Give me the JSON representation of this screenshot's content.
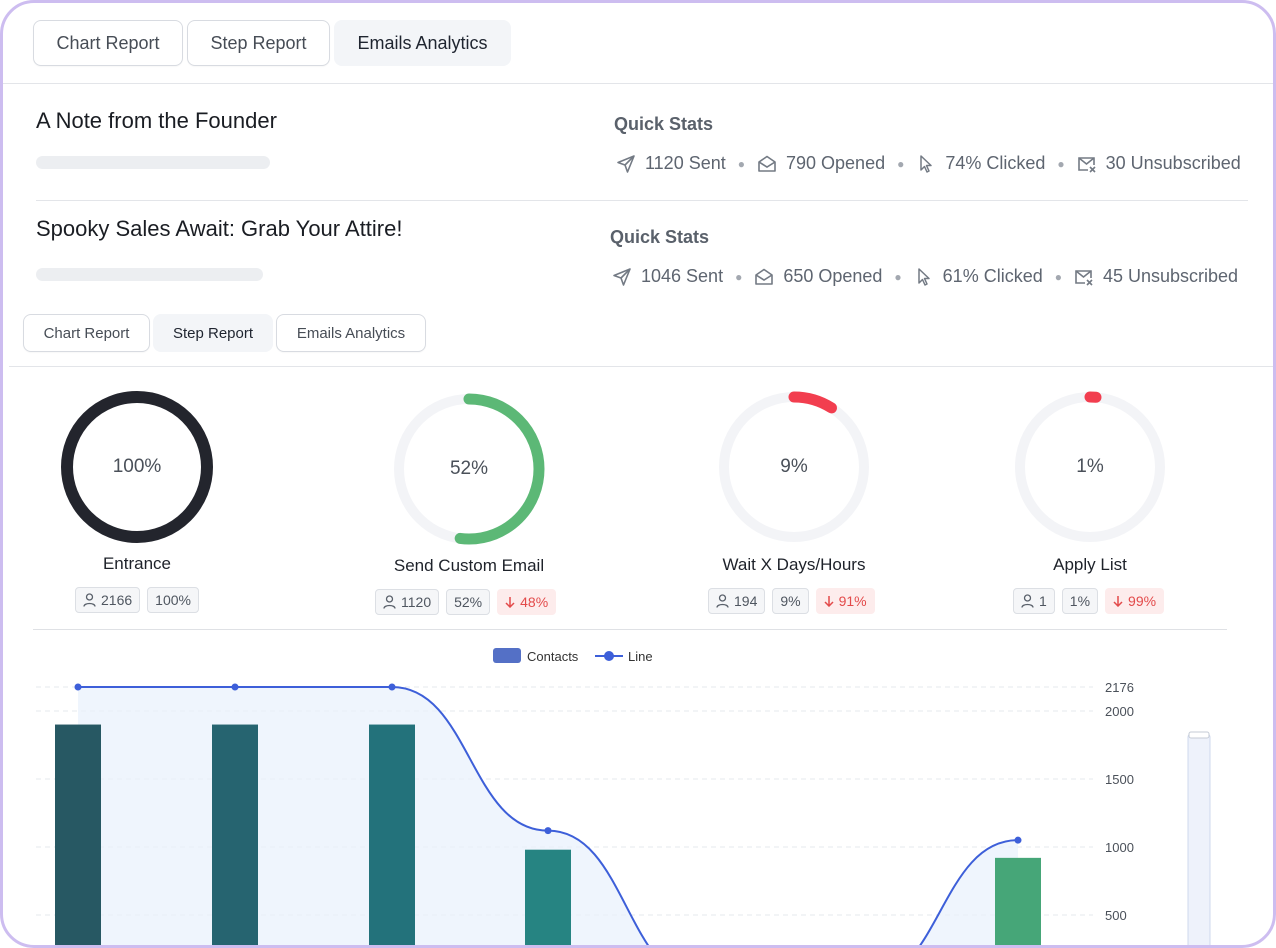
{
  "top_tabs": [
    {
      "label": "Chart Report",
      "active": false
    },
    {
      "label": "Step Report",
      "active": false
    },
    {
      "label": "Emails Analytics",
      "active": true
    }
  ],
  "emails": [
    {
      "title": "A Note from the Founder",
      "quick_stats_label": "Quick Stats",
      "sent": "1120 Sent",
      "opened": "790 Opened",
      "clicked": "74% Clicked",
      "unsubscribed": "30 Unsubscribed"
    },
    {
      "title": "Spooky Sales Await: Grab Your Attire!",
      "quick_stats_label": "Quick Stats",
      "sent": "1046 Sent",
      "opened": "650 Opened",
      "clicked": "61% Clicked",
      "unsubscribed": "45 Unsubscribed"
    }
  ],
  "step_tabs": [
    {
      "label": "Chart Report",
      "active": false
    },
    {
      "label": "Step Report",
      "active": true
    },
    {
      "label": "Emails Analytics",
      "active": false
    }
  ],
  "steps": [
    {
      "name": "Entrance",
      "percent_label": "100%",
      "fraction": 1.0,
      "color": "#23252d",
      "contacts": "2166",
      "rate": "100%",
      "drop": ""
    },
    {
      "name": "Send Custom Email",
      "percent_label": "52%",
      "fraction": 0.52,
      "color": "#5cb876",
      "contacts": "1120",
      "rate": "52%",
      "drop": "48%"
    },
    {
      "name": "Wait X Days/Hours",
      "percent_label": "9%",
      "fraction": 0.09,
      "color": "#f23e4f",
      "contacts": "194",
      "rate": "9%",
      "drop": "91%"
    },
    {
      "name": "Apply List",
      "percent_label": "1%",
      "fraction": 0.01,
      "color": "#f23e4f",
      "contacts": "1",
      "rate": "1%",
      "drop": "99%"
    }
  ],
  "chart_data": {
    "type": "bar",
    "legend": [
      {
        "name": "Contacts",
        "color": "#5470c6"
      },
      {
        "name": "Line",
        "color": "#3d5fd9"
      }
    ],
    "legend_position": "top-center",
    "y_ticks": [
      500,
      1000,
      1500,
      2000,
      2176
    ],
    "ylim": [
      0,
      2176
    ],
    "grid": true,
    "series": [
      {
        "name": "Contacts",
        "type": "bar",
        "values": [
          1900,
          1900,
          1900,
          980,
          null,
          null,
          920
        ]
      },
      {
        "name": "Line",
        "type": "line",
        "values": [
          2176,
          2176,
          2176,
          1120,
          0,
          0,
          1050
        ]
      }
    ]
  }
}
